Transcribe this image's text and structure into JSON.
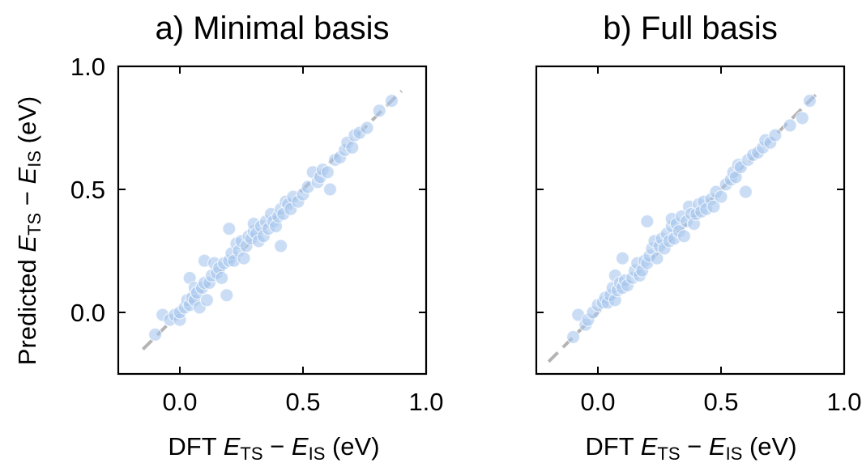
{
  "colors": {
    "points": "#a9c8ef",
    "point_edge": "#ffffff",
    "diagonal": "#b4b4b4"
  },
  "y_label": {
    "prefix": "Predicted ",
    "e1": "E",
    "s1": "TS",
    "op": " − ",
    "e2": "E",
    "s2": "IS",
    "suffix": " (eV)"
  },
  "x_label": {
    "prefix": "DFT ",
    "e1": "E",
    "s1": "TS",
    "op": " − ",
    "e2": "E",
    "s2": "IS",
    "suffix": " (eV)"
  },
  "chart_data": [
    {
      "type": "scatter",
      "title": "a) Minimal basis",
      "xlim": [
        -0.25,
        1.0
      ],
      "ylim": [
        -0.25,
        1.0
      ],
      "xticks": [
        "0.0",
        "0.5",
        "1.0"
      ],
      "yticks": [
        "0.0",
        "0.5",
        "1.0"
      ],
      "tick_values": [
        0.0,
        0.5,
        1.0
      ],
      "diagonal": [
        -0.15,
        0.9
      ],
      "points": [
        [
          -0.1,
          -0.09
        ],
        [
          -0.07,
          -0.01
        ],
        [
          -0.04,
          -0.03
        ],
        [
          -0.02,
          -0.01
        ],
        [
          0.0,
          -0.03
        ],
        [
          0.0,
          0.0
        ],
        [
          0.02,
          0.02
        ],
        [
          0.03,
          0.05
        ],
        [
          0.04,
          0.03
        ],
        [
          0.04,
          0.14
        ],
        [
          0.05,
          0.06
        ],
        [
          0.06,
          0.1
        ],
        [
          0.06,
          0.05
        ],
        [
          0.07,
          0.08
        ],
        [
          0.08,
          0.02
        ],
        [
          0.09,
          0.1
        ],
        [
          0.1,
          0.12
        ],
        [
          0.1,
          0.21
        ],
        [
          0.11,
          0.05
        ],
        [
          0.12,
          0.12
        ],
        [
          0.13,
          0.15
        ],
        [
          0.14,
          0.2
        ],
        [
          0.15,
          0.16
        ],
        [
          0.16,
          0.18
        ],
        [
          0.17,
          0.14
        ],
        [
          0.18,
          0.2
        ],
        [
          0.19,
          0.07
        ],
        [
          0.2,
          0.21
        ],
        [
          0.2,
          0.34
        ],
        [
          0.21,
          0.24
        ],
        [
          0.22,
          0.21
        ],
        [
          0.23,
          0.28
        ],
        [
          0.24,
          0.25
        ],
        [
          0.25,
          0.29
        ],
        [
          0.26,
          0.22
        ],
        [
          0.27,
          0.27
        ],
        [
          0.28,
          0.31
        ],
        [
          0.29,
          0.3
        ],
        [
          0.3,
          0.33
        ],
        [
          0.3,
          0.36
        ],
        [
          0.31,
          0.32
        ],
        [
          0.32,
          0.29
        ],
        [
          0.33,
          0.35
        ],
        [
          0.34,
          0.31
        ],
        [
          0.35,
          0.37
        ],
        [
          0.36,
          0.34
        ],
        [
          0.37,
          0.4
        ],
        [
          0.38,
          0.37
        ],
        [
          0.39,
          0.35
        ],
        [
          0.4,
          0.39
        ],
        [
          0.41,
          0.42
        ],
        [
          0.41,
          0.27
        ],
        [
          0.42,
          0.4
        ],
        [
          0.43,
          0.45
        ],
        [
          0.44,
          0.44
        ],
        [
          0.45,
          0.42
        ],
        [
          0.46,
          0.47
        ],
        [
          0.48,
          0.45
        ],
        [
          0.5,
          0.48
        ],
        [
          0.52,
          0.51
        ],
        [
          0.54,
          0.57
        ],
        [
          0.56,
          0.53
        ],
        [
          0.57,
          0.55
        ],
        [
          0.58,
          0.58
        ],
        [
          0.6,
          0.57
        ],
        [
          0.61,
          0.5
        ],
        [
          0.63,
          0.62
        ],
        [
          0.65,
          0.63
        ],
        [
          0.67,
          0.66
        ],
        [
          0.68,
          0.69
        ],
        [
          0.7,
          0.67
        ],
        [
          0.71,
          0.72
        ],
        [
          0.73,
          0.73
        ],
        [
          0.76,
          0.75
        ],
        [
          0.81,
          0.82
        ],
        [
          0.86,
          0.86
        ]
      ]
    },
    {
      "type": "scatter",
      "title": "b) Full basis",
      "xlim": [
        -0.25,
        1.0
      ],
      "ylim": [
        -0.25,
        1.0
      ],
      "xticks": [
        "0.0",
        "0.5",
        "1.0"
      ],
      "yticks": [],
      "tick_values": [
        0.0,
        0.5,
        1.0
      ],
      "diagonal": [
        -0.2,
        0.9
      ],
      "points": [
        [
          -0.1,
          -0.1
        ],
        [
          -0.08,
          -0.01
        ],
        [
          -0.05,
          -0.05
        ],
        [
          -0.04,
          -0.03
        ],
        [
          -0.02,
          0.0
        ],
        [
          0.0,
          0.03
        ],
        [
          0.02,
          0.04
        ],
        [
          0.03,
          0.06
        ],
        [
          0.04,
          0.04
        ],
        [
          0.05,
          0.07
        ],
        [
          0.06,
          0.1
        ],
        [
          0.07,
          0.15
        ],
        [
          0.07,
          0.05
        ],
        [
          0.08,
          0.09
        ],
        [
          0.09,
          0.12
        ],
        [
          0.1,
          0.1
        ],
        [
          0.1,
          0.22
        ],
        [
          0.11,
          0.13
        ],
        [
          0.12,
          0.11
        ],
        [
          0.14,
          0.14
        ],
        [
          0.15,
          0.17
        ],
        [
          0.16,
          0.2
        ],
        [
          0.17,
          0.15
        ],
        [
          0.18,
          0.17
        ],
        [
          0.19,
          0.21
        ],
        [
          0.2,
          0.37
        ],
        [
          0.2,
          0.2
        ],
        [
          0.21,
          0.23
        ],
        [
          0.22,
          0.26
        ],
        [
          0.23,
          0.29
        ],
        [
          0.24,
          0.22
        ],
        [
          0.25,
          0.27
        ],
        [
          0.26,
          0.3
        ],
        [
          0.27,
          0.26
        ],
        [
          0.28,
          0.32
        ],
        [
          0.29,
          0.29
        ],
        [
          0.3,
          0.35
        ],
        [
          0.3,
          0.38
        ],
        [
          0.31,
          0.3
        ],
        [
          0.32,
          0.36
        ],
        [
          0.33,
          0.33
        ],
        [
          0.34,
          0.39
        ],
        [
          0.35,
          0.31
        ],
        [
          0.36,
          0.37
        ],
        [
          0.37,
          0.43
        ],
        [
          0.38,
          0.4
        ],
        [
          0.39,
          0.36
        ],
        [
          0.4,
          0.4
        ],
        [
          0.41,
          0.44
        ],
        [
          0.42,
          0.41
        ],
        [
          0.43,
          0.45
        ],
        [
          0.44,
          0.42
        ],
        [
          0.46,
          0.46
        ],
        [
          0.47,
          0.43
        ],
        [
          0.48,
          0.49
        ],
        [
          0.5,
          0.47
        ],
        [
          0.52,
          0.52
        ],
        [
          0.54,
          0.54
        ],
        [
          0.55,
          0.57
        ],
        [
          0.56,
          0.55
        ],
        [
          0.57,
          0.6
        ],
        [
          0.58,
          0.59
        ],
        [
          0.6,
          0.49
        ],
        [
          0.61,
          0.62
        ],
        [
          0.63,
          0.64
        ],
        [
          0.65,
          0.65
        ],
        [
          0.67,
          0.67
        ],
        [
          0.68,
          0.7
        ],
        [
          0.7,
          0.69
        ],
        [
          0.72,
          0.72
        ],
        [
          0.78,
          0.76
        ],
        [
          0.83,
          0.79
        ],
        [
          0.86,
          0.86
        ]
      ]
    }
  ]
}
